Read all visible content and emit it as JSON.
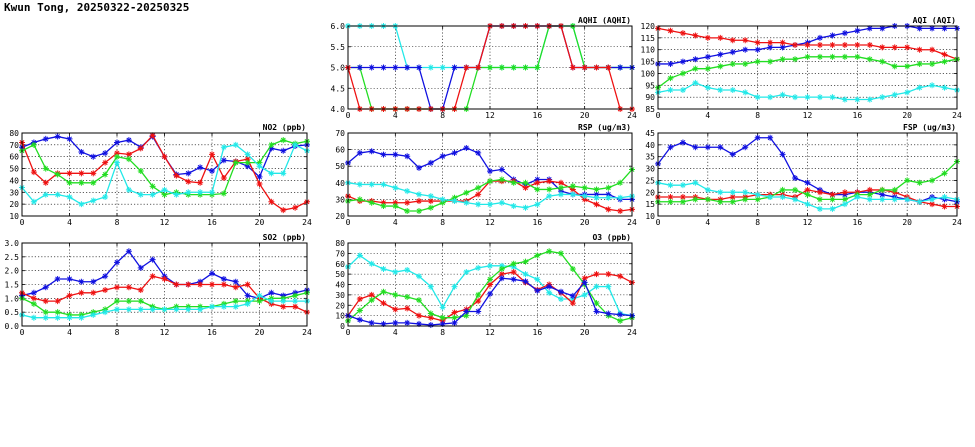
{
  "page": {
    "title": "Kwun Tong, 20250322-20250325"
  },
  "colors": {
    "blue": "#1010e0",
    "red": "#ee1111",
    "green": "#22dd22",
    "cyan": "#22e8e8"
  },
  "chart_data": [
    {
      "id": "aqhi",
      "type": "line",
      "title": "AQHI (AQHI)",
      "xlim": [
        0,
        24
      ],
      "xticks": [
        0,
        4,
        8,
        12,
        16,
        20,
        24
      ],
      "ylim": [
        4.0,
        6.0
      ],
      "yticks": [
        "4.0",
        "4.5",
        "5.0",
        "5.5",
        "6.0"
      ],
      "grid": true,
      "series": [
        {
          "color": "cyan",
          "values": [
            6,
            6,
            6,
            6,
            6,
            5,
            5,
            5,
            5,
            5,
            5,
            5,
            5,
            5,
            5,
            5,
            5,
            6,
            6,
            6,
            5,
            5,
            5,
            5,
            5
          ]
        },
        {
          "color": "green",
          "values": [
            5,
            5,
            4,
            4,
            4,
            4,
            4,
            4,
            4,
            4,
            4,
            5,
            5,
            5,
            5,
            5,
            5,
            6,
            6,
            6,
            5,
            5,
            5,
            5,
            5
          ]
        },
        {
          "color": "blue",
          "values": [
            5,
            5,
            5,
            5,
            5,
            5,
            5,
            4,
            4,
            5,
            5,
            5,
            6,
            6,
            6,
            6,
            6,
            6,
            6,
            5,
            5,
            5,
            5,
            5,
            5
          ]
        },
        {
          "color": "red",
          "values": [
            5,
            4,
            4,
            4,
            4,
            4,
            4,
            4,
            4,
            4,
            5,
            5,
            6,
            6,
            6,
            6,
            6,
            6,
            6,
            5,
            5,
            5,
            5,
            4,
            4
          ]
        }
      ]
    },
    {
      "id": "aqi",
      "type": "line",
      "title": "AQI (AQI)",
      "xlim": [
        0,
        24
      ],
      "xticks": [
        0,
        4,
        8,
        12,
        16,
        20,
        24
      ],
      "ylim": [
        85,
        120
      ],
      "yticks": [
        "85",
        "90",
        "95",
        "100",
        "105",
        "110",
        "115",
        "120"
      ],
      "grid": true,
      "series": [
        {
          "color": "blue",
          "values": [
            104,
            104,
            105,
            106,
            107,
            108,
            109,
            110,
            110,
            111,
            111,
            112,
            113,
            115,
            116,
            117,
            118,
            119,
            119,
            120,
            120,
            119,
            119,
            119,
            119
          ]
        },
        {
          "color": "red",
          "values": [
            119,
            118,
            117,
            116,
            115,
            115,
            114,
            114,
            113,
            113,
            113,
            112,
            112,
            112,
            112,
            112,
            112,
            112,
            111,
            111,
            111,
            110,
            110,
            108,
            106
          ]
        },
        {
          "color": "green",
          "values": [
            94,
            98,
            100,
            102,
            102,
            103,
            104,
            104,
            105,
            105,
            106,
            106,
            107,
            107,
            107,
            107,
            107,
            106,
            105,
            103,
            103,
            104,
            104,
            105,
            106
          ]
        },
        {
          "color": "cyan",
          "values": [
            92,
            93,
            93,
            96,
            94,
            93,
            93,
            92,
            90,
            90,
            91,
            90,
            90,
            90,
            90,
            89,
            89,
            89,
            90,
            91,
            92,
            94,
            95,
            94,
            93
          ]
        }
      ]
    },
    {
      "id": "no2",
      "type": "line",
      "title": "NO2 (ppb)",
      "xlim": [
        0,
        24
      ],
      "xticks": [
        0,
        4,
        8,
        12,
        16,
        20,
        24
      ],
      "ylim": [
        10,
        80
      ],
      "yticks": [
        "10",
        "20",
        "30",
        "40",
        "50",
        "60",
        "70",
        "80"
      ],
      "grid": true,
      "series": [
        {
          "color": "blue",
          "values": [
            68,
            72,
            75,
            77,
            75,
            64,
            60,
            63,
            72,
            74,
            68,
            77,
            60,
            45,
            46,
            51,
            48,
            57,
            56,
            52,
            43,
            67,
            65,
            69,
            70
          ]
        },
        {
          "color": "red",
          "values": [
            72,
            47,
            38,
            46,
            46,
            46,
            46,
            55,
            63,
            62,
            67,
            78,
            60,
            44,
            39,
            38,
            62,
            42,
            56,
            58,
            37,
            22,
            15,
            17,
            22
          ]
        },
        {
          "color": "green",
          "values": [
            65,
            70,
            50,
            45,
            38,
            38,
            38,
            45,
            60,
            58,
            48,
            35,
            28,
            30,
            28,
            28,
            28,
            29,
            55,
            55,
            55,
            70,
            74,
            71,
            73
          ]
        },
        {
          "color": "cyan",
          "values": [
            34,
            22,
            28,
            28,
            26,
            20,
            23,
            26,
            55,
            32,
            28,
            28,
            32,
            28,
            30,
            30,
            30,
            68,
            70,
            62,
            52,
            46,
            46,
            70,
            65
          ]
        }
      ]
    },
    {
      "id": "rsp",
      "type": "line",
      "title": "RSP (ug/m3)",
      "xlim": [
        0,
        24
      ],
      "xticks": [
        0,
        4,
        8,
        12,
        16,
        20,
        24
      ],
      "ylim": [
        20,
        70
      ],
      "yticks": [
        "20",
        "30",
        "40",
        "50",
        "60",
        "70"
      ],
      "grid": true,
      "series": [
        {
          "color": "blue",
          "values": [
            52,
            58,
            59,
            57,
            57,
            56,
            49,
            52,
            56,
            58,
            61,
            58,
            47,
            48,
            42,
            39,
            42,
            42,
            35,
            33,
            33,
            33,
            33,
            30,
            30
          ]
        },
        {
          "color": "red",
          "values": [
            32,
            29,
            29,
            28,
            28,
            28,
            29,
            29,
            29,
            29,
            29,
            33,
            41,
            41,
            41,
            37,
            40,
            41,
            40,
            36,
            30,
            27,
            24,
            23,
            24
          ]
        },
        {
          "color": "green",
          "values": [
            29,
            30,
            28,
            26,
            26,
            23,
            23,
            25,
            28,
            31,
            34,
            37,
            41,
            42,
            40,
            40,
            36,
            36,
            37,
            38,
            37,
            36,
            37,
            40,
            48
          ]
        },
        {
          "color": "cyan",
          "values": [
            40,
            39,
            39,
            39,
            37,
            35,
            33,
            32,
            30,
            29,
            28,
            27,
            27,
            28,
            26,
            25,
            27,
            32,
            33,
            33,
            32,
            31,
            31,
            31,
            32
          ]
        }
      ]
    },
    {
      "id": "fsp",
      "type": "line",
      "title": "FSP (ug/m3)",
      "xlim": [
        0,
        24
      ],
      "xticks": [
        0,
        4,
        8,
        12,
        16,
        20,
        24
      ],
      "ylim": [
        10,
        45
      ],
      "yticks": [
        "10",
        "15",
        "20",
        "25",
        "30",
        "35",
        "40",
        "45"
      ],
      "grid": true,
      "series": [
        {
          "color": "blue",
          "values": [
            32,
            39,
            41,
            39,
            39,
            39,
            36,
            39,
            43,
            43,
            36,
            26,
            24,
            21,
            19,
            19,
            20,
            20,
            19,
            18,
            17,
            16,
            18,
            17,
            16
          ]
        },
        {
          "color": "red",
          "values": [
            18,
            18,
            18,
            18,
            17,
            17,
            18,
            18,
            19,
            19,
            19,
            18,
            21,
            20,
            19,
            20,
            20,
            21,
            21,
            20,
            18,
            16,
            15,
            14,
            14
          ]
        },
        {
          "color": "green",
          "values": [
            16,
            16,
            16,
            17,
            17,
            16,
            16,
            17,
            17,
            18,
            21,
            21,
            19,
            17,
            17,
            17,
            19,
            19,
            21,
            21,
            25,
            24,
            25,
            28,
            33
          ]
        },
        {
          "color": "cyan",
          "values": [
            24,
            23,
            23,
            24,
            21,
            20,
            20,
            20,
            19,
            18,
            18,
            17,
            15,
            13,
            13,
            15,
            18,
            17,
            17,
            17,
            17,
            16,
            17,
            18,
            17
          ]
        }
      ]
    },
    {
      "id": "so2",
      "type": "line",
      "title": "SO2 (ppb)",
      "xlim": [
        0,
        24
      ],
      "xticks": [
        0,
        4,
        8,
        12,
        16,
        20,
        24
      ],
      "ylim": [
        0.0,
        3.0
      ],
      "yticks": [
        "0.0",
        "0.5",
        "1.0",
        "1.5",
        "2.0",
        "2.5",
        "3.0"
      ],
      "grid": true,
      "series": [
        {
          "color": "blue",
          "values": [
            1.1,
            1.2,
            1.4,
            1.7,
            1.7,
            1.6,
            1.6,
            1.8,
            2.3,
            2.7,
            2.1,
            2.4,
            1.8,
            1.5,
            1.5,
            1.6,
            1.9,
            1.7,
            1.6,
            1.1,
            1.0,
            1.2,
            1.1,
            1.2,
            1.3
          ]
        },
        {
          "color": "red",
          "values": [
            1.2,
            1.0,
            0.9,
            0.9,
            1.1,
            1.2,
            1.2,
            1.3,
            1.4,
            1.4,
            1.3,
            1.8,
            1.7,
            1.5,
            1.5,
            1.5,
            1.5,
            1.5,
            1.4,
            1.5,
            1.0,
            0.8,
            0.7,
            0.7,
            0.5
          ]
        },
        {
          "color": "green",
          "values": [
            1.0,
            0.8,
            0.5,
            0.5,
            0.4,
            0.4,
            0.5,
            0.6,
            0.9,
            0.9,
            0.9,
            0.7,
            0.6,
            0.7,
            0.7,
            0.7,
            0.7,
            0.8,
            0.9,
            0.9,
            0.9,
            1.0,
            1.0,
            1.1,
            1.2
          ]
        },
        {
          "color": "cyan",
          "values": [
            0.4,
            0.3,
            0.3,
            0.3,
            0.3,
            0.3,
            0.4,
            0.5,
            0.6,
            0.6,
            0.6,
            0.6,
            0.6,
            0.6,
            0.6,
            0.6,
            0.7,
            0.7,
            0.7,
            0.8,
            1.1,
            0.9,
            0.9,
            0.9,
            0.9
          ]
        }
      ]
    },
    {
      "id": "o3",
      "type": "line",
      "title": "O3 (ppb)",
      "xlim": [
        0,
        24
      ],
      "xticks": [
        0,
        4,
        8,
        12,
        16,
        20,
        24
      ],
      "ylim": [
        0,
        80
      ],
      "yticks": [
        "0",
        "10",
        "20",
        "30",
        "40",
        "50",
        "60",
        "70",
        "80"
      ],
      "grid": true,
      "series": [
        {
          "color": "cyan",
          "values": [
            57,
            68,
            60,
            55,
            52,
            54,
            48,
            38,
            18,
            38,
            52,
            56,
            58,
            58,
            57,
            50,
            45,
            32,
            26,
            26,
            30,
            38,
            38,
            12,
            10
          ]
        },
        {
          "color": "red",
          "values": [
            10,
            26,
            30,
            22,
            16,
            17,
            10,
            8,
            5,
            13,
            16,
            24,
            40,
            50,
            52,
            42,
            35,
            40,
            32,
            22,
            46,
            50,
            50,
            48,
            42
          ]
        },
        {
          "color": "green",
          "values": [
            5,
            15,
            25,
            33,
            30,
            28,
            25,
            12,
            8,
            8,
            10,
            30,
            45,
            55,
            60,
            62,
            68,
            72,
            70,
            55,
            40,
            22,
            10,
            5,
            8
          ]
        },
        {
          "color": "blue",
          "values": [
            10,
            6,
            3,
            2,
            3,
            3,
            2,
            1,
            2,
            3,
            14,
            14,
            31,
            46,
            45,
            43,
            34,
            38,
            33,
            29,
            42,
            14,
            12,
            11,
            10
          ]
        }
      ]
    }
  ]
}
